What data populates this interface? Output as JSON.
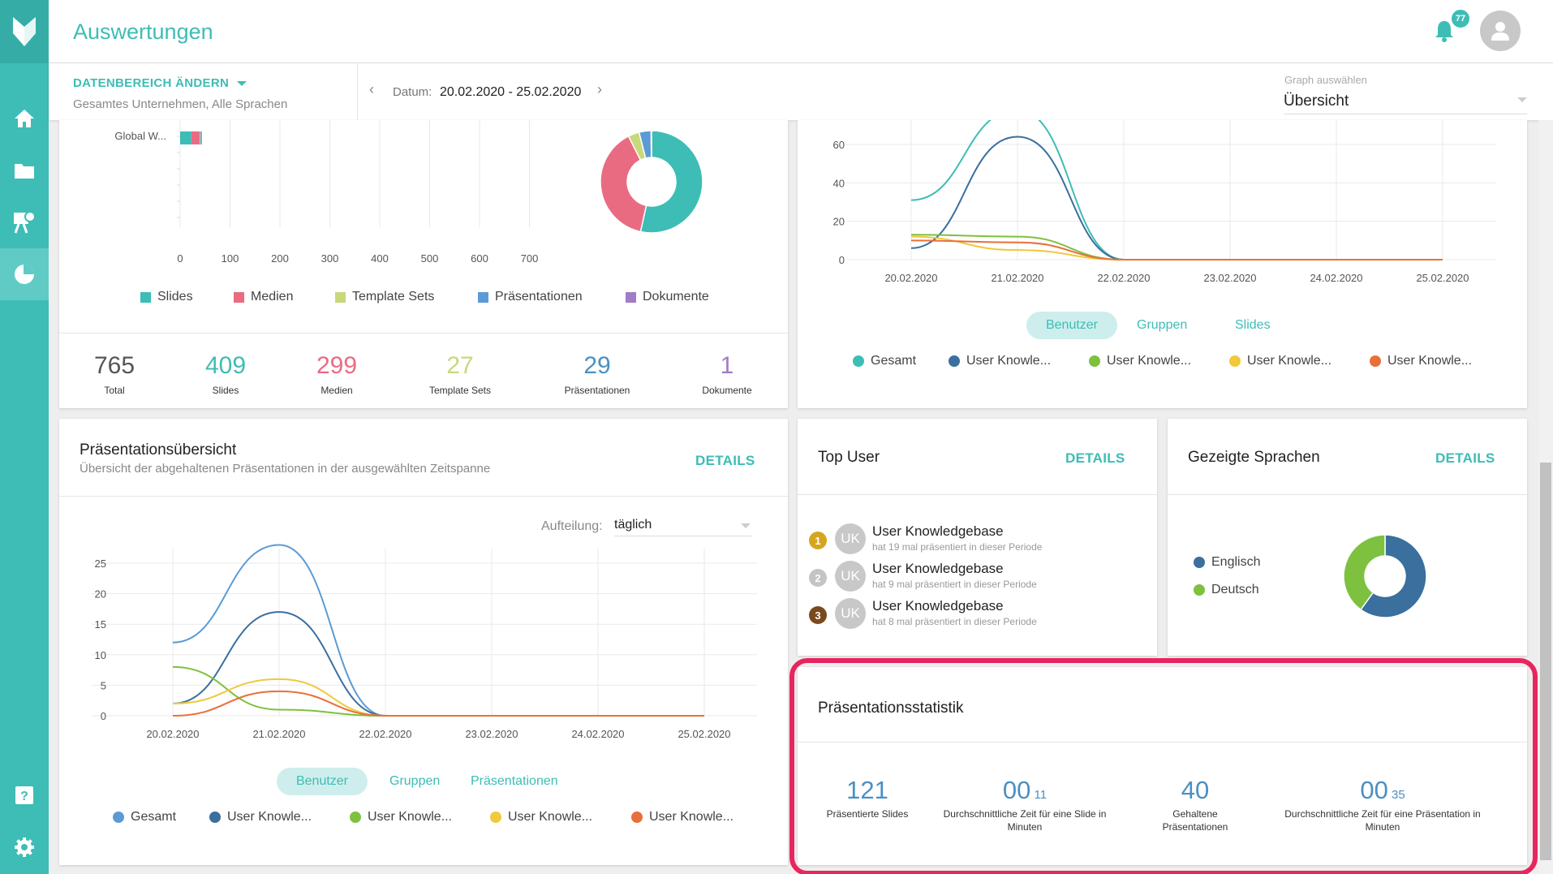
{
  "app": {
    "title": "Auswertungen",
    "notifications": "77"
  },
  "filter": {
    "range_label": "DATENBEREICH ÄNDERN",
    "range_sub": "Gesamtes Unternehmen,  Alle Sprachen",
    "date_label": "Datum:",
    "date_value": "20.02.2020 - 25.02.2020",
    "graph_label": "Graph auswählen",
    "graph_value": "Übersicht"
  },
  "content_card": {
    "bar_row_label": "Global W...",
    "x_ticks": [
      "0",
      "100",
      "200",
      "300",
      "400",
      "500",
      "600",
      "700"
    ],
    "legend": [
      {
        "label": "Slides",
        "color": "#3dbdb5"
      },
      {
        "label": "Medien",
        "color": "#e96b82"
      },
      {
        "label": "Template Sets",
        "color": "#c9d87a"
      },
      {
        "label": "Präsentationen",
        "color": "#5b9bd5"
      },
      {
        "label": "Dokumente",
        "color": "#a07cc5"
      }
    ],
    "stats": [
      {
        "value": "765",
        "label": "Total",
        "color": "#555555"
      },
      {
        "value": "409",
        "label": "Slides",
        "color": "#3dbdb5"
      },
      {
        "value": "299",
        "label": "Medien",
        "color": "#e96b82"
      },
      {
        "value": "27",
        "label": "Template Sets",
        "color": "#c9d87a"
      },
      {
        "value": "29",
        "label": "Präsentationen",
        "color": "#4a90c2"
      },
      {
        "value": "1",
        "label": "Dokumente",
        "color": "#a07cc5"
      }
    ]
  },
  "usage_card": {
    "y_ticks": [
      "60",
      "40",
      "20",
      "0"
    ],
    "x_ticks": [
      "20.02.2020",
      "21.02.2020",
      "22.02.2020",
      "23.02.2020",
      "24.02.2020",
      "25.02.2020"
    ],
    "tabs": [
      "Benutzer",
      "Gruppen",
      "Slides"
    ],
    "legend": [
      {
        "label": "Gesamt",
        "color": "#3dbdb5"
      },
      {
        "label": "User Knowle...",
        "color": "#3a6f9e"
      },
      {
        "label": "User Knowle...",
        "color": "#7dc13f"
      },
      {
        "label": "User Knowle...",
        "color": "#f0c93c"
      },
      {
        "label": "User Knowle...",
        "color": "#e8703a"
      }
    ]
  },
  "presentation_overview": {
    "title": "Präsentationsübersicht",
    "subtitle": "Übersicht der abgehaltenen Präsentationen in der ausgewählten Zeitspanne",
    "details": "DETAILS",
    "split_label": "Aufteilung:",
    "split_value": "täglich",
    "y_ticks": [
      "25",
      "20",
      "15",
      "10",
      "5",
      "0"
    ],
    "x_ticks": [
      "20.02.2020",
      "21.02.2020",
      "22.02.2020",
      "23.02.2020",
      "24.02.2020",
      "25.02.2020"
    ],
    "tabs": [
      "Benutzer",
      "Gruppen",
      "Präsentationen"
    ],
    "legend": [
      {
        "label": "Gesamt",
        "color": "#5b9bd5"
      },
      {
        "label": "User Knowle...",
        "color": "#3a6f9e"
      },
      {
        "label": "User Knowle...",
        "color": "#7dc13f"
      },
      {
        "label": "User Knowle...",
        "color": "#f0c93c"
      },
      {
        "label": "User Knowle...",
        "color": "#e8703a"
      }
    ]
  },
  "top_user": {
    "title": "Top User",
    "details": "DETAILS",
    "users": [
      {
        "rank": "1",
        "initials": "UK",
        "name": "User Knowledgebase",
        "sub": "hat 19 mal präsentiert in dieser Periode",
        "rank_color": "#d6a520"
      },
      {
        "rank": "2",
        "initials": "UK",
        "name": "User Knowledgebase",
        "sub": "hat 9 mal präsentiert in dieser Periode",
        "rank_color": "#c4c4c4"
      },
      {
        "rank": "3",
        "initials": "UK",
        "name": "User Knowledgebase",
        "sub": "hat 8 mal präsentiert in dieser Periode",
        "rank_color": "#7a4a1e"
      }
    ]
  },
  "languages": {
    "title": "Gezeigte Sprachen",
    "details": "DETAILS",
    "legend": [
      {
        "label": "Englisch",
        "color": "#3a6f9e"
      },
      {
        "label": "Deutsch",
        "color": "#7dc13f"
      }
    ]
  },
  "stats_card": {
    "title": "Präsentationsstatistik",
    "items": [
      {
        "value": "121",
        "small": "",
        "label": "Präsentierte Slides"
      },
      {
        "value": "00",
        "small": "11",
        "label": "Durchschnittliche Zeit für eine Slide in Minuten"
      },
      {
        "value": "40",
        "small": "",
        "label": "Gehaltene Präsentationen"
      },
      {
        "value": "00",
        "small": "35",
        "label": "Durchschnittliche Zeit für eine Präsentation in Minuten"
      }
    ]
  },
  "chart_data": [
    {
      "type": "bar",
      "categories": [
        "Global W..."
      ],
      "series": [
        {
          "name": "Slides",
          "values": [
            15
          ]
        },
        {
          "name": "Medien",
          "values": [
            11
          ]
        },
        {
          "name": "Template Sets",
          "values": [
            1
          ]
        },
        {
          "name": "Präsentationen",
          "values": [
            1
          ]
        },
        {
          "name": "Dokumente",
          "values": [
            1
          ]
        }
      ],
      "xlim": [
        0,
        700
      ]
    },
    {
      "type": "pie",
      "categories": [
        "Slides",
        "Medien",
        "Template Sets",
        "Präsentationen",
        "Dokumente"
      ],
      "values": [
        409,
        299,
        27,
        29,
        1
      ]
    },
    {
      "type": "line",
      "x": [
        "20.02.2020",
        "21.02.2020",
        "22.02.2020",
        "23.02.2020",
        "24.02.2020",
        "25.02.2020"
      ],
      "ylim": [
        0,
        70
      ],
      "series": [
        {
          "name": "Gesamt",
          "values": [
            31,
            78,
            0,
            0,
            0,
            0
          ]
        },
        {
          "name": "User Knowle...",
          "values": [
            6,
            64,
            0,
            0,
            0,
            0
          ]
        },
        {
          "name": "User Knowle...",
          "values": [
            13,
            12,
            0,
            0,
            0,
            0
          ]
        },
        {
          "name": "User Knowle...",
          "values": [
            12,
            5,
            0,
            0,
            0,
            0
          ]
        },
        {
          "name": "User Knowle...",
          "values": [
            10,
            9,
            0,
            0,
            0,
            0
          ]
        }
      ]
    },
    {
      "type": "line",
      "x": [
        "20.02.2020",
        "21.02.2020",
        "22.02.2020",
        "23.02.2020",
        "24.02.2020",
        "25.02.2020"
      ],
      "ylim": [
        0,
        28
      ],
      "series": [
        {
          "name": "Gesamt",
          "values": [
            12,
            28,
            0,
            0,
            0,
            0
          ]
        },
        {
          "name": "User Knowle...",
          "values": [
            2,
            17,
            0,
            0,
            0,
            0
          ]
        },
        {
          "name": "User Knowle...",
          "values": [
            8,
            1,
            0,
            0,
            0,
            0
          ]
        },
        {
          "name": "User Knowle...",
          "values": [
            2,
            6,
            0,
            0,
            0,
            0
          ]
        },
        {
          "name": "User Knowle...",
          "values": [
            0,
            4,
            0,
            0,
            0,
            0
          ]
        }
      ]
    },
    {
      "type": "pie",
      "categories": [
        "Englisch",
        "Deutsch"
      ],
      "values": [
        60,
        40
      ]
    }
  ]
}
